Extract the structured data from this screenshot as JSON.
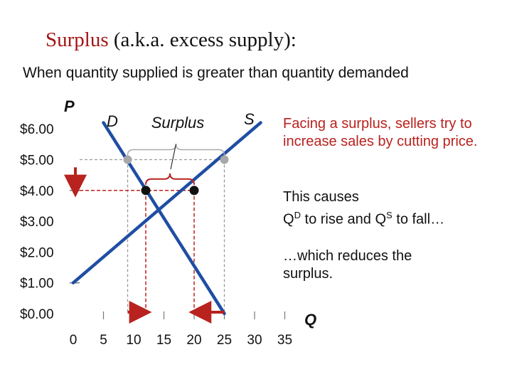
{
  "slide": {
    "title_red": "Surplus",
    "title_rest": " (a.k.a. excess supply):",
    "subtitle": "When quantity supplied is greater than quantity demanded",
    "note1": "Facing a surplus, sellers try to increase sales by cutting price.",
    "note2_line1": "This causes",
    "note2_q1": "Q",
    "note2_sup1": "D",
    "note2_mid": " to rise and ",
    "note2_q2": "Q",
    "note2_sup2": "S",
    "note2_end": " to fall…",
    "note3": "…which reduces the surplus."
  },
  "chart_data": {
    "type": "line",
    "xlabel": "Q",
    "ylabel": "P",
    "xlim": [
      0,
      35
    ],
    "ylim": [
      0,
      6
    ],
    "x_ticks": [
      "0",
      "5",
      "10",
      "15",
      "20",
      "25",
      "30",
      "35"
    ],
    "y_ticks": [
      "$0.00",
      "$1.00",
      "$2.00",
      "$3.00",
      "$4.00",
      "$5.00",
      "$6.00"
    ],
    "series": [
      {
        "name": "D",
        "color": "#1f4ea3",
        "points": [
          [
            5,
            6.2
          ],
          [
            25,
            0
          ]
        ]
      },
      {
        "name": "S",
        "color": "#1f4ea3",
        "points": [
          [
            0,
            1.0
          ],
          [
            31,
            6.2
          ]
        ]
      }
    ],
    "annotations": [
      {
        "label": "Surplus",
        "from_q": 9,
        "to_q": 25,
        "price": 5.0
      }
    ],
    "points": {
      "gray": [
        [
          9,
          5.0
        ],
        [
          25,
          5.0
        ]
      ],
      "black": [
        [
          12,
          4.0
        ],
        [
          20,
          4.0
        ]
      ]
    }
  }
}
